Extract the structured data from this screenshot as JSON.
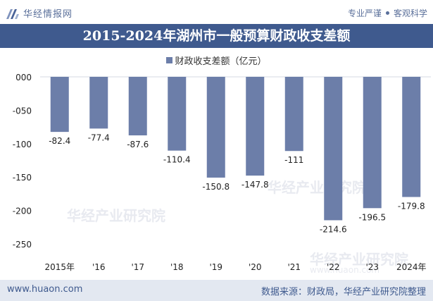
{
  "header": {
    "brand": "华经情报网",
    "tagline": [
      "专业严谨",
      "客观科学"
    ]
  },
  "title": "2015-2024年湖州市一般预算财政收支差额",
  "footer": {
    "url": "www.huaon.com",
    "source": "数据来源：财政局，华经产业研究院整理"
  },
  "watermark": {
    "text": "华经产业研究院",
    "url": "www.huaon.com"
  },
  "colors": {
    "bar": "#6c7ea9",
    "title_bg": "#3f5a8e",
    "footer_bg": "#e3e8f1"
  },
  "chart_data": {
    "type": "bar",
    "categories": [
      "2015年",
      "'16",
      "'17",
      "'18",
      "'19",
      "'20",
      "'21",
      "'22",
      "'23",
      "2024年"
    ],
    "series": [
      {
        "name": "财政收支差额（亿元）",
        "values": [
          -82.4,
          -77.4,
          -87.6,
          -110.4,
          -150.8,
          -147.8,
          -111,
          -214.6,
          -196.5,
          -179.8
        ]
      }
    ],
    "data_labels": [
      "-82.4",
      "-77.4",
      "-87.6",
      "-110.4",
      "-150.8",
      "-147.8",
      "-111",
      "-214.6",
      "-196.5",
      "-179.8"
    ],
    "y_ticks": [
      "000",
      "-050",
      "-100",
      "-150",
      "-200",
      "-250"
    ],
    "ylim": [
      -250,
      0
    ],
    "legend_position": "top-center",
    "grid": false
  }
}
